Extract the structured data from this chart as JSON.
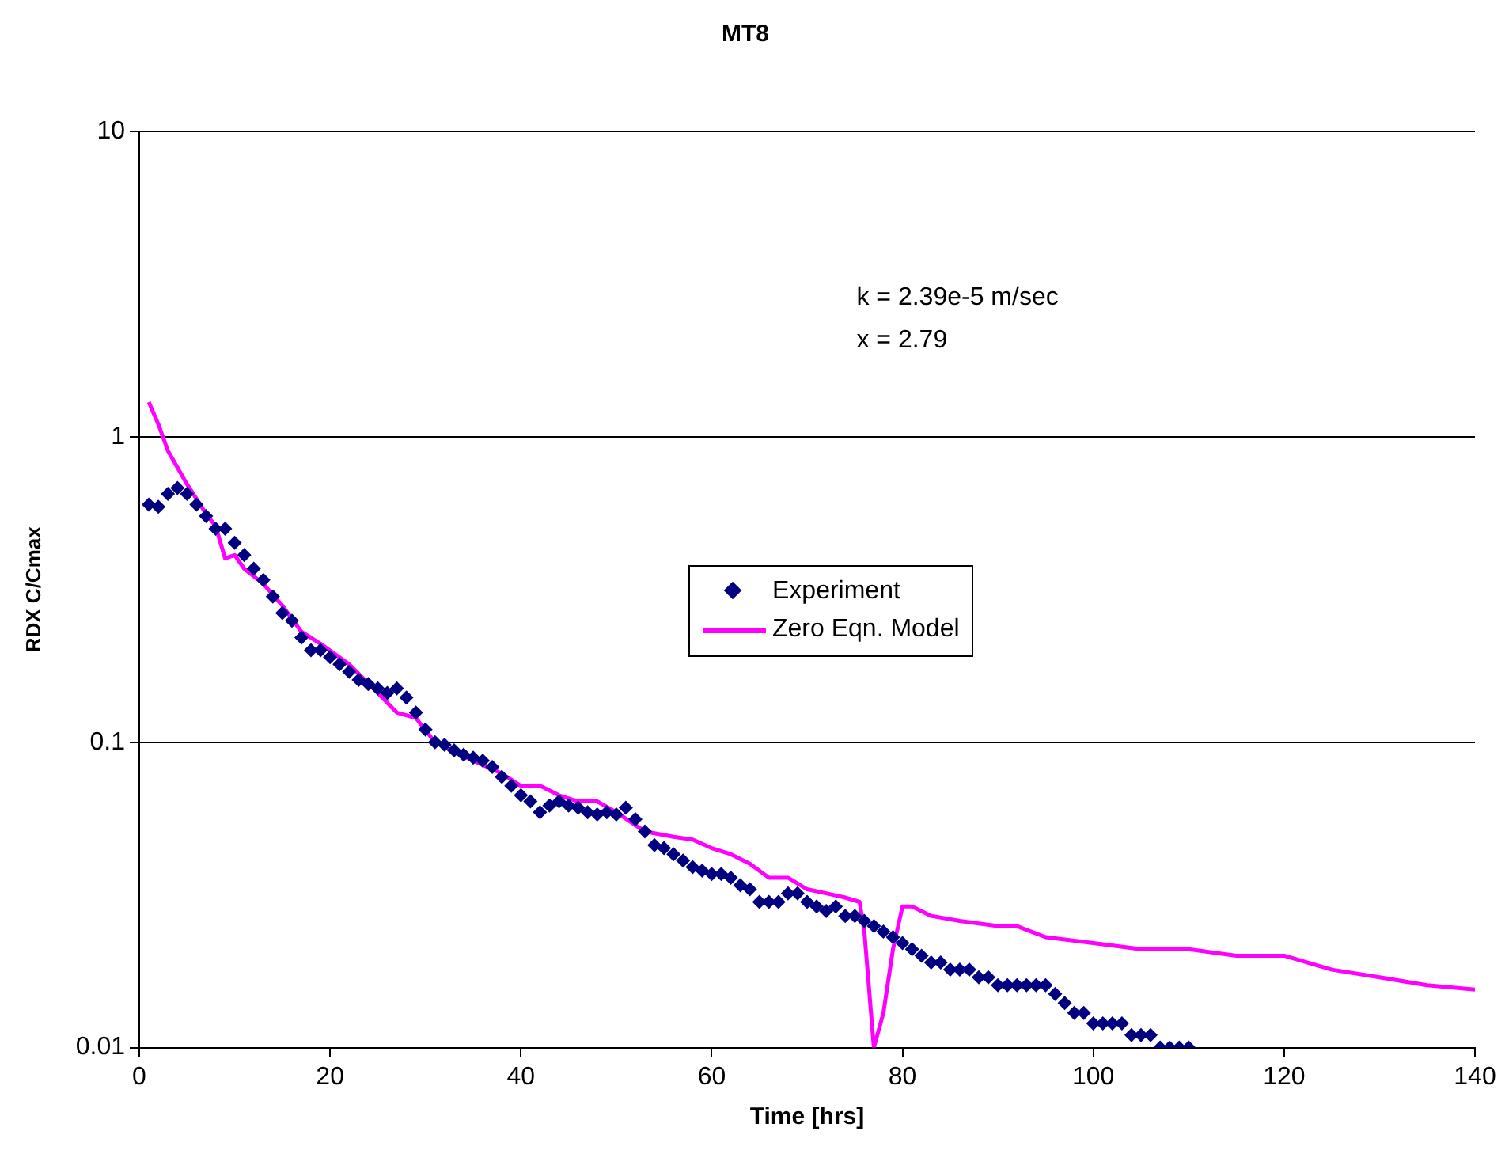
{
  "chart_data": {
    "type": "scatter",
    "title": "MT8",
    "xlabel": "Time [hrs]",
    "ylabel": "RDX C/Cmax",
    "xlim": [
      0,
      140
    ],
    "xticks": [
      0,
      20,
      40,
      60,
      80,
      100,
      120,
      140
    ],
    "ylim": [
      0.01,
      10
    ],
    "yticks": [
      0.01,
      0.1,
      1,
      10
    ],
    "log": "y",
    "grid": "y",
    "legend": "center",
    "annotations": [
      "k = 2.39e-5 m/sec",
      "x = 2.79"
    ],
    "series": [
      {
        "name": "Experiment",
        "color": "#000080",
        "marker": "diamond",
        "x": [
          1,
          2,
          3,
          4,
          5,
          6,
          7,
          8,
          9,
          10,
          11,
          12,
          13,
          14,
          15,
          16,
          17,
          18,
          19,
          20,
          21,
          22,
          23,
          24,
          25,
          26,
          27,
          28,
          29,
          30,
          31,
          32,
          33,
          34,
          35,
          36,
          37,
          38,
          39,
          40,
          41,
          42,
          43,
          44,
          45,
          46,
          47,
          48,
          49,
          50,
          51,
          52,
          53,
          54,
          55,
          56,
          57,
          58,
          59,
          60,
          61,
          62,
          63,
          64,
          65,
          66,
          67,
          68,
          69,
          70,
          71,
          72,
          73,
          74,
          75,
          76,
          77,
          78,
          79,
          80,
          81,
          82,
          83,
          84,
          85,
          86,
          87,
          88,
          89,
          90,
          91,
          92,
          93,
          94,
          95,
          96,
          97,
          98,
          99,
          100,
          101,
          102,
          103,
          104,
          105,
          106,
          107,
          108,
          109,
          110
        ],
        "values": [
          0.6,
          0.59,
          0.65,
          0.68,
          0.65,
          0.6,
          0.55,
          0.5,
          0.5,
          0.45,
          0.41,
          0.37,
          0.34,
          0.3,
          0.265,
          0.25,
          0.22,
          0.2,
          0.2,
          0.19,
          0.18,
          0.17,
          0.16,
          0.155,
          0.15,
          0.145,
          0.15,
          0.14,
          0.125,
          0.11,
          0.1,
          0.098,
          0.094,
          0.091,
          0.089,
          0.087,
          0.083,
          0.077,
          0.072,
          0.067,
          0.064,
          0.059,
          0.062,
          0.064,
          0.062,
          0.061,
          0.059,
          0.058,
          0.059,
          0.058,
          0.061,
          0.056,
          0.051,
          0.046,
          0.045,
          0.043,
          0.041,
          0.039,
          0.038,
          0.037,
          0.037,
          0.036,
          0.034,
          0.033,
          0.03,
          0.03,
          0.03,
          0.032,
          0.032,
          0.03,
          0.029,
          0.028,
          0.029,
          0.027,
          0.027,
          0.026,
          0.025,
          0.024,
          0.023,
          0.022,
          0.021,
          0.02,
          0.019,
          0.019,
          0.018,
          0.018,
          0.018,
          0.017,
          0.017,
          0.016,
          0.016,
          0.016,
          0.016,
          0.016,
          0.016,
          0.015,
          0.014,
          0.013,
          0.013,
          0.012,
          0.012,
          0.012,
          0.012,
          0.011,
          0.011,
          0.011,
          0.01,
          0.01,
          0.01,
          0.01
        ]
      },
      {
        "name": "Zero Eqn. Model",
        "type": "line",
        "color": "#ff00ff",
        "marker": "none",
        "x": [
          1,
          2,
          3,
          5,
          7,
          8,
          9,
          10,
          11,
          13,
          15,
          17,
          19,
          22,
          25,
          27,
          29,
          31,
          35,
          38,
          40,
          42,
          44,
          46,
          48,
          50,
          53,
          56,
          58,
          60,
          62,
          64,
          66,
          68,
          70,
          72,
          74,
          75.5,
          76,
          77,
          78,
          79,
          80,
          81,
          83,
          86,
          90,
          92,
          95,
          100,
          105,
          110,
          115,
          120,
          125,
          130,
          135,
          140
        ],
        "values": [
          1.3,
          1.1,
          0.9,
          0.7,
          0.56,
          0.51,
          0.4,
          0.41,
          0.37,
          0.33,
          0.28,
          0.23,
          0.21,
          0.18,
          0.145,
          0.125,
          0.12,
          0.1,
          0.087,
          0.079,
          0.072,
          0.072,
          0.067,
          0.064,
          0.064,
          0.059,
          0.051,
          0.049,
          0.048,
          0.045,
          0.043,
          0.04,
          0.036,
          0.036,
          0.033,
          0.032,
          0.031,
          0.03,
          0.024,
          0.01,
          0.013,
          0.021,
          0.029,
          0.029,
          0.027,
          0.026,
          0.025,
          0.025,
          0.023,
          0.022,
          0.021,
          0.021,
          0.02,
          0.02,
          0.018,
          0.017,
          0.016,
          0.0155
        ]
      }
    ]
  }
}
